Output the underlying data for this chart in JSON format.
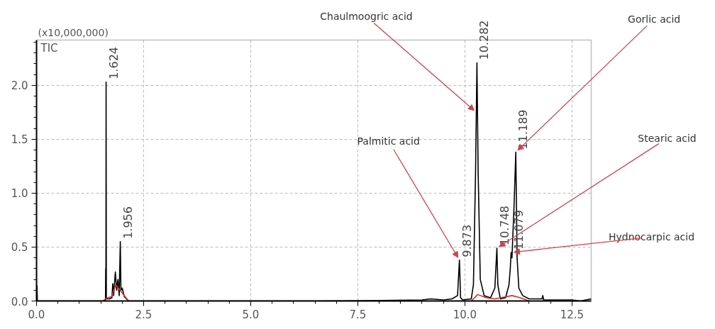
{
  "chart_data": {
    "type": "line",
    "ylabel": "(x10,000,000)",
    "xlim": [
      0,
      12.95
    ],
    "ylim": [
      0,
      2.42
    ],
    "xticks": [
      {
        "value": 0,
        "label": "0.0"
      },
      {
        "value": 2.5,
        "label": "2.5"
      },
      {
        "value": 5,
        "label": "5.0"
      },
      {
        "value": 7.5,
        "label": "7.5"
      },
      {
        "value": 10,
        "label": "10.0"
      },
      {
        "value": 12.5,
        "label": "12.5"
      }
    ],
    "yticks": [
      {
        "value": 0,
        "label": "0.0"
      },
      {
        "value": 0.5,
        "label": "0.5"
      },
      {
        "value": 1,
        "label": "1.0"
      },
      {
        "value": 1.5,
        "label": "1.5"
      },
      {
        "value": 2,
        "label": "2.0"
      }
    ],
    "grid": true,
    "marker": "none",
    "line_style": "solid",
    "series": [
      {
        "name": "TIC",
        "color": "#000000",
        "x": [
          0,
          0.01,
          0.02,
          1.55,
          1.61,
          1.615,
          1.62,
          1.624,
          1.63,
          1.7,
          1.76,
          1.78,
          1.8,
          1.84,
          1.87,
          1.9,
          1.93,
          1.956,
          1.97,
          2.0,
          2.05,
          2.1,
          2.15,
          6.5,
          8.0,
          9.0,
          9.2,
          9.5,
          9.7,
          9.83,
          9.873,
          9.9,
          9.95,
          10.15,
          10.2,
          10.25,
          10.282,
          10.31,
          10.33,
          10.36,
          10.45,
          10.6,
          10.7,
          10.748,
          10.77,
          10.8,
          10.83,
          10.95,
          11.03,
          11.06,
          11.079,
          11.1,
          11.15,
          11.189,
          11.22,
          11.26,
          11.35,
          11.5,
          11.8,
          11.82,
          11.84,
          12.5,
          12.7,
          12.95
        ],
        "values": [
          0.15,
          0.14,
          0,
          0,
          0.01,
          0.3,
          0.05,
          2.03,
          0.02,
          0.02,
          0.03,
          0.16,
          0.05,
          0.27,
          0.1,
          0.2,
          0.05,
          0.55,
          0.1,
          0.12,
          0.04,
          0.02,
          0,
          0,
          0.005,
          0.01,
          0.02,
          0.01,
          0.02,
          0.05,
          0.38,
          0.03,
          0.01,
          0.02,
          0.15,
          1.2,
          2.21,
          1.2,
          0.8,
          0.2,
          0.05,
          0.03,
          0.12,
          0.49,
          0.15,
          0.08,
          0.02,
          0.03,
          0.15,
          0.3,
          0.45,
          0.4,
          0.9,
          1.38,
          0.4,
          0.12,
          0.05,
          0.02,
          0.02,
          0.05,
          0.01,
          0.01,
          0,
          0.02
        ]
      },
      {
        "color": "#cc3333",
        "x": [
          1.55,
          1.65,
          1.75,
          1.85,
          1.95,
          2.05,
          2.15,
          null,
          10.15,
          10.3,
          10.5,
          10.7,
          11.1,
          11.3,
          11.5
        ],
        "values": [
          0,
          0.03,
          0.04,
          0.15,
          0.1,
          0.05,
          0,
          null,
          0,
          0.06,
          0.03,
          0.02,
          0.05,
          0.03,
          0
        ]
      }
    ],
    "annotations": [
      {
        "text": "1.624",
        "x": 1.624,
        "y": 2.03
      },
      {
        "text": "1.956",
        "x": 1.956,
        "y": 0.55
      },
      {
        "text": "9.873",
        "x": 9.873,
        "y": 0.38
      },
      {
        "text": "10.282",
        "x": 10.282,
        "y": 2.21
      },
      {
        "text": "10.748",
        "x": 10.748,
        "y": 0.49
      },
      {
        "text": "11.079",
        "x": 11.079,
        "y": 0.45
      },
      {
        "text": "11.189",
        "x": 11.189,
        "y": 1.38
      },
      {
        "text": "Chaulmoogric acid",
        "x": 10.267,
        "y": 1.75
      },
      {
        "text": "Gorlic acid",
        "x": 11.189,
        "y": 1.38
      },
      {
        "text": "Palmitic acid",
        "x": 9.873,
        "y": 0.38
      },
      {
        "text": "Stearic acid",
        "x": 10.748,
        "y": 0.49
      },
      {
        "text": "Hydnocarpic acid",
        "x": 11.079,
        "y": 0.45
      }
    ]
  }
}
